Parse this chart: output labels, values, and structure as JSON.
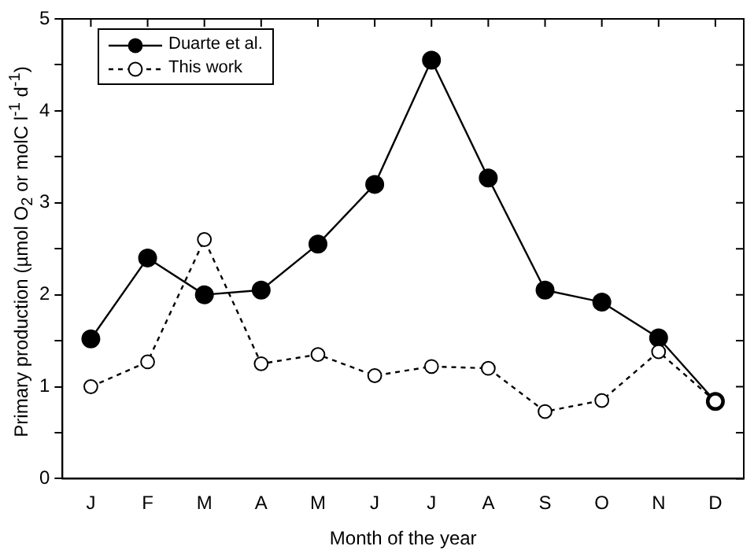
{
  "chart_data": {
    "type": "line",
    "xlabel": "Month of the year",
    "ylabel": "Primary production (µmol O$_{2}$ or  molC l$^{-1}$ d$^{-1}$)",
    "categories": [
      "J",
      "F",
      "M",
      "A",
      "M",
      "J",
      "J",
      "A",
      "S",
      "O",
      "N",
      "D"
    ],
    "series": [
      {
        "name": "Duarte et al.",
        "color": "#000000",
        "marker": "circle",
        "line_style": "solid",
        "values": [
          1.52,
          2.4,
          2.0,
          2.05,
          2.55,
          3.2,
          4.55,
          3.27,
          2.05,
          1.92,
          1.53,
          0.84
        ]
      },
      {
        "name": "This work",
        "color": "#000000",
        "marker": "circle",
        "line_style": "dashed",
        "values": [
          1.0,
          1.27,
          2.6,
          1.25,
          1.35,
          1.12,
          1.22,
          1.2,
          0.73,
          0.85,
          1.38,
          0.84
        ]
      }
    ],
    "ylim": [
      0,
      5
    ],
    "yticks": [
      0,
      {
        "value": 0.5,
        "label": null
      },
      1,
      {
        "value": 1.5,
        "label": null
      },
      2,
      {
        "value": 2.5,
        "label": null
      },
      3,
      {
        "value": 3.5,
        "label": null
      },
      4,
      {
        "value": 4.5,
        "label": null
      },
      5
    ],
    "grid": false,
    "legend": "top left"
  }
}
